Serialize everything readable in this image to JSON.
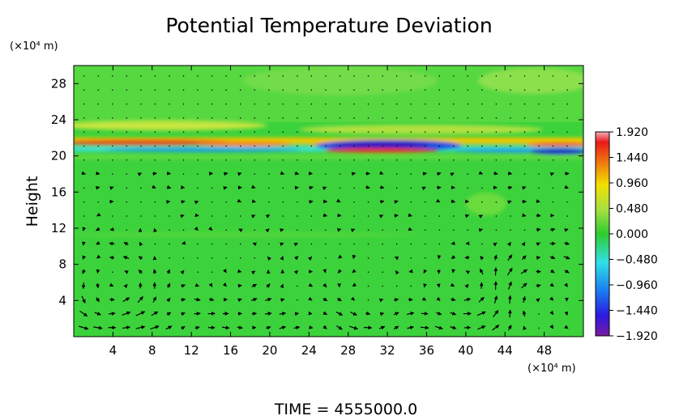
{
  "chart_data": {
    "type": "heatmap",
    "title": "Potential Temperature Deviation",
    "ylabel": "Height",
    "xunit_label": "(×10⁴ m)",
    "yunit_label": "(×10⁴ m)",
    "footer": "TIME  =  4555000.0",
    "xlim": [
      0,
      52
    ],
    "ylim": [
      0,
      30
    ],
    "x_ticks": [
      4,
      8,
      12,
      16,
      20,
      24,
      28,
      32,
      36,
      40,
      44,
      48
    ],
    "y_ticks": [
      4,
      8,
      12,
      16,
      20,
      24,
      28
    ],
    "colorbar": {
      "range": [
        -1.92,
        1.92
      ],
      "tick_values": [
        1.92,
        1.44,
        0.96,
        0.48,
        0.0,
        -0.48,
        -0.96,
        -1.44,
        -1.92
      ],
      "tick_labels": [
        "1.920",
        "1.440",
        "0.960",
        "0.480",
        "0.000",
        "−0.480",
        "−0.960",
        "−1.440",
        "−1.920"
      ],
      "colormap": [
        "#7a1aa0",
        "#2b1ae0",
        "#1a7cf0",
        "#30e0e8",
        "#2ecc2e",
        "#a8e040",
        "#f0e000",
        "#f07010",
        "#e81a1a",
        "#f4b0b8"
      ]
    },
    "field_features": [
      {
        "name": "warm-band-upper",
        "x_range": [
          0,
          52
        ],
        "y": 21.3,
        "value": 1.5
      },
      {
        "name": "cold-band-lower",
        "x_range": [
          0,
          52
        ],
        "y": 20.5,
        "value": -0.9
      },
      {
        "name": "cold-core-center",
        "x_range": [
          24,
          36
        ],
        "y": 21.2,
        "value": -1.9
      },
      {
        "name": "cold-core-right",
        "x_range": [
          46,
          52
        ],
        "y": 20.5,
        "value": -1.6
      },
      {
        "name": "warm-layer-top",
        "x_range": [
          0,
          52
        ],
        "y": 23.0,
        "value": 0.35
      }
    ],
    "vector_field_description": "Wind arrows on grid; strong circulation cells near x≈4, x≈30, x≈40 and x≈46 below 10×10⁴ m"
  }
}
